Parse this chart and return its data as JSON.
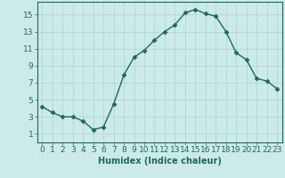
{
  "title": "",
  "xlabel": "Humidex (Indice chaleur)",
  "x": [
    0,
    1,
    2,
    3,
    4,
    5,
    6,
    7,
    8,
    9,
    10,
    11,
    12,
    13,
    14,
    15,
    16,
    17,
    18,
    19,
    20,
    21,
    22,
    23
  ],
  "y": [
    4.2,
    3.5,
    3.0,
    3.0,
    2.5,
    1.5,
    1.8,
    4.5,
    7.9,
    10.0,
    10.8,
    12.0,
    13.0,
    13.8,
    15.2,
    15.6,
    15.1,
    14.8,
    13.0,
    10.5,
    9.7,
    7.5,
    7.2,
    6.3
  ],
  "xlim": [
    -0.5,
    23.5
  ],
  "ylim": [
    0,
    16.5
  ],
  "yticks": [
    1,
    3,
    5,
    7,
    9,
    11,
    13,
    15
  ],
  "xticks": [
    0,
    1,
    2,
    3,
    4,
    5,
    6,
    7,
    8,
    9,
    10,
    11,
    12,
    13,
    14,
    15,
    16,
    17,
    18,
    19,
    20,
    21,
    22,
    23
  ],
  "line_color": "#1a6b5a",
  "marker": "D",
  "marker_size": 2.5,
  "bg_color": "#cceae7",
  "grid_color": "#aad4cf",
  "tick_color": "#1a6b5a",
  "label_color": "#1a6b5a",
  "axis_fontsize": 7,
  "tick_fontsize": 6.5,
  "linewidth": 1.0
}
